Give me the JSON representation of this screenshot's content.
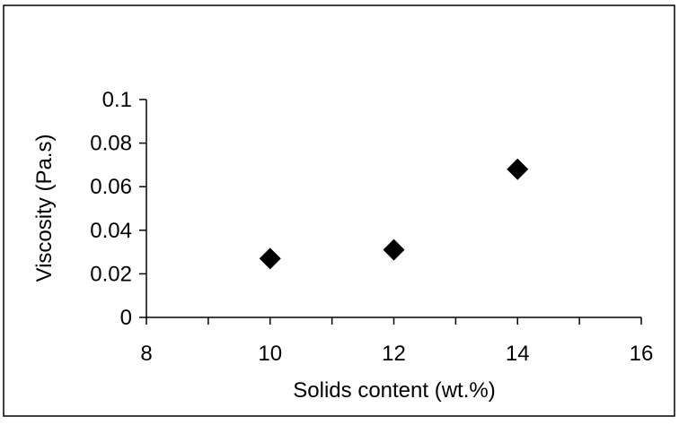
{
  "chart_data": {
    "type": "scatter",
    "title": "",
    "xlabel": "Solids content (wt.%)",
    "ylabel": "Viscosity (Pa.s)",
    "xlim": [
      8,
      16
    ],
    "ylim": [
      0,
      0.1
    ],
    "x_ticks": [
      8,
      10,
      12,
      14,
      16
    ],
    "x_tick_labels": [
      "8",
      "10",
      "12",
      "14",
      "16"
    ],
    "x_minor_ticks": [
      9,
      11,
      13,
      15
    ],
    "y_ticks": [
      0,
      0.02,
      0.04,
      0.06,
      0.08,
      0.1
    ],
    "y_tick_labels": [
      "0",
      "0.02",
      "0.04",
      "0.06",
      "0.08",
      "0.1"
    ],
    "grid": false,
    "legend": "none",
    "marker": "diamond",
    "marker_color": "#000000",
    "series": [
      {
        "x": [
          10,
          12,
          14
        ],
        "y": [
          0.027,
          0.031,
          0.068
        ]
      }
    ]
  }
}
